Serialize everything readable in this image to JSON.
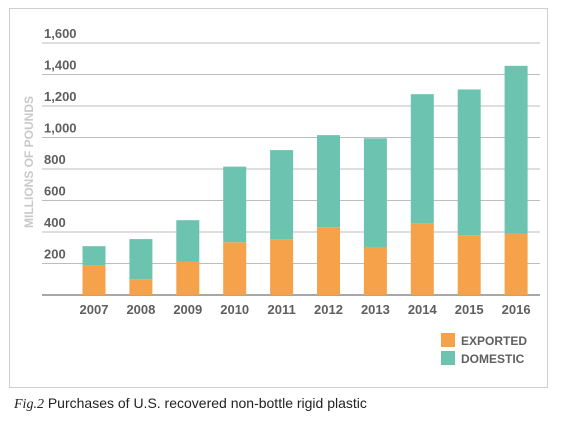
{
  "caption": {
    "fig_label": "Fig.2",
    "text": "Purchases of U.S. recovered non-bottle rigid plastic"
  },
  "colors": {
    "exported": "#f5a24b",
    "domestic": "#6cc3b0",
    "grid": "#bdbdbd",
    "axis": "#8a8a8a",
    "tick_text": "#5f5f5f",
    "ylabel": "#c9c9c9"
  },
  "chart_data": {
    "type": "bar",
    "stacked": true,
    "ylabel": "MILLIONS OF POUNDS",
    "xlabel": "",
    "ylim": [
      0,
      1600
    ],
    "yticks": [
      200,
      400,
      600,
      800,
      "1,000",
      "1,200",
      "1,400",
      "1,600"
    ],
    "ytick_values": [
      200,
      400,
      600,
      800,
      1000,
      1200,
      1400,
      1600
    ],
    "categories": [
      "2007",
      "2008",
      "2009",
      "2010",
      "2011",
      "2012",
      "2013",
      "2014",
      "2015",
      "2016"
    ],
    "series": [
      {
        "name": "EXPORTED",
        "values": [
          190,
          100,
          210,
          335,
          355,
          430,
          305,
          455,
          380,
          390
        ]
      },
      {
        "name": "DOMESTIC",
        "values": [
          120,
          255,
          265,
          480,
          565,
          585,
          690,
          820,
          925,
          1065
        ]
      }
    ],
    "legend_position": "bottom-right",
    "grid": true
  }
}
